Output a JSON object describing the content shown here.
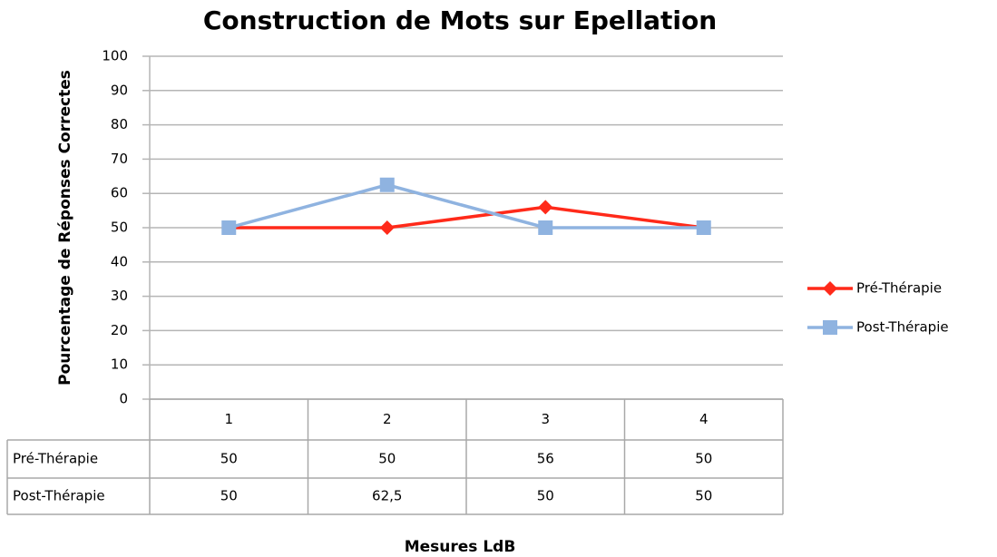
{
  "chart_data": {
    "type": "line",
    "title": "Construction de Mots sur Epellation",
    "y_label": "Pourcentage de Réponses Correctes",
    "x_label": "Mesures LdB",
    "categories": [
      "1",
      "2",
      "3",
      "4"
    ],
    "series": [
      {
        "name": "Pré-Thérapie",
        "color": "#ff2a1a",
        "marker": "diamond",
        "values": [
          50,
          50,
          56,
          50
        ]
      },
      {
        "name": "Post-Thérapie",
        "color": "#8fb3e0",
        "marker": "square",
        "values": [
          50,
          62.5,
          50,
          50
        ],
        "value_labels": [
          "50",
          "62,5",
          "50",
          "50"
        ]
      }
    ],
    "ylim": [
      0,
      100
    ],
    "yticks": [
      0,
      10,
      20,
      30,
      40,
      50,
      60,
      70,
      80,
      90,
      100
    ],
    "grid": true,
    "legend": "right"
  }
}
